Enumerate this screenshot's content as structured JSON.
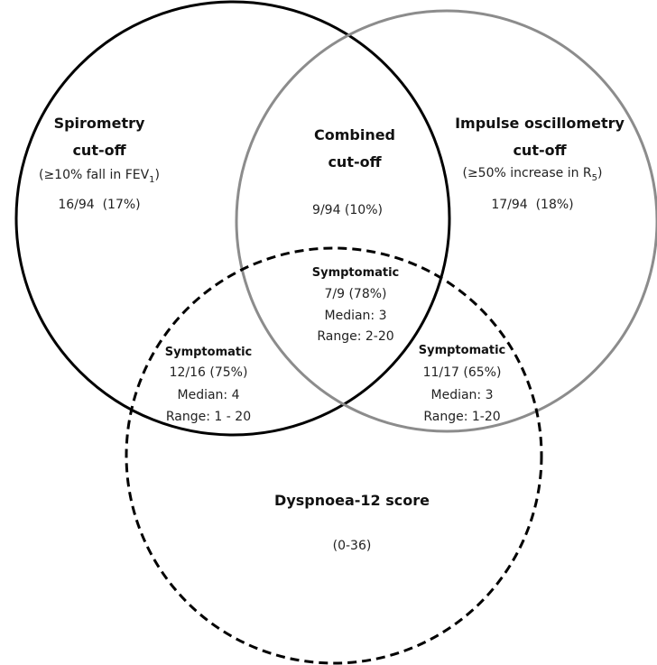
{
  "sets": [
    {
      "title": [
        "Spirometry",
        "cut-off"
      ],
      "criterion": {
        "text": "(≥10% fall in FEV",
        "sub": "1",
        "close": ")"
      },
      "count": "16/94  (17%)"
    },
    {
      "title": [
        "Impulse oscillometry",
        "cut-off"
      ],
      "criterion": {
        "text": "(≥50% increase in R",
        "sub": "5",
        "close": ")"
      },
      "count": "17/94  (18%)"
    },
    {
      "title": [
        "Dyspnoea-12 score"
      ],
      "range": "(0-36)"
    }
  ],
  "combined": {
    "title": [
      "Combined",
      "cut-off"
    ],
    "count": "9/94 (10%)"
  },
  "symptomatic": [
    {
      "heading": "Symptomatic",
      "lines": [
        "7/9 (78%)",
        "Median: 3",
        "Range: 2-20"
      ]
    },
    {
      "heading": "Symptomatic",
      "lines": [
        "12/16 (75%)",
        "Median: 4",
        "Range: 1 - 20"
      ]
    },
    {
      "heading": "Symptomatic",
      "lines": [
        "11/17 (65%)",
        "Median: 3",
        "Range: 1-20"
      ]
    }
  ]
}
